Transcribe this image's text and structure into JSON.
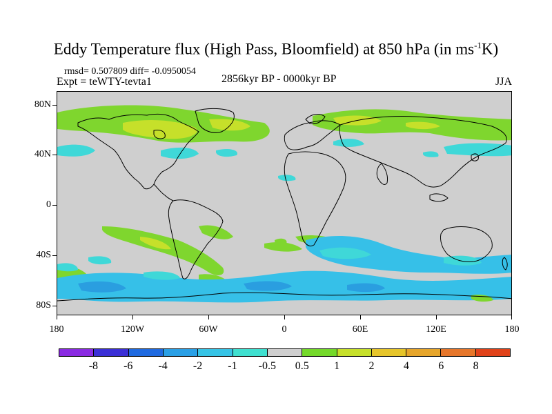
{
  "title": {
    "text": "Eddy Temperature flux (High Pass, Bloomfield) at 850 hPa (in ms",
    "sup": "-1",
    "suffix": "K)"
  },
  "stats": "rmsd= 0.507809 diff= -0.0950054",
  "experiment": "Expt = teWTY-tevta1",
  "period": "2856kyr BP - 0000kyr BP",
  "season": "JJA",
  "axes": {
    "lat_labels": [
      "80N",
      "40N",
      "0",
      "40S",
      "80S"
    ],
    "lon_labels": [
      "180",
      "120W",
      "60W",
      "0",
      "60E",
      "120E",
      "180"
    ]
  },
  "colorbar": {
    "colors": [
      "#8a2be2",
      "#3b2fd6",
      "#1f6ae0",
      "#2aa0e6",
      "#36c4e6",
      "#3fe0d0",
      "#cfcfcf",
      "#74d92a",
      "#c6e02a",
      "#e6c52a",
      "#e6a52a",
      "#e6762a",
      "#e0421a"
    ],
    "labels": [
      "-8",
      "-6",
      "-4",
      "-2",
      "-1",
      "-0.5",
      "0.5",
      "1",
      "2",
      "4",
      "6",
      "8"
    ]
  },
  "fill_colors": {
    "neutral": "#cfcfcf",
    "green": "#7fd62e",
    "yellow": "#c6e02a",
    "cyan": "#3fd8d8",
    "lightblue": "#36c0e8",
    "blue": "#2a9ee0"
  }
}
